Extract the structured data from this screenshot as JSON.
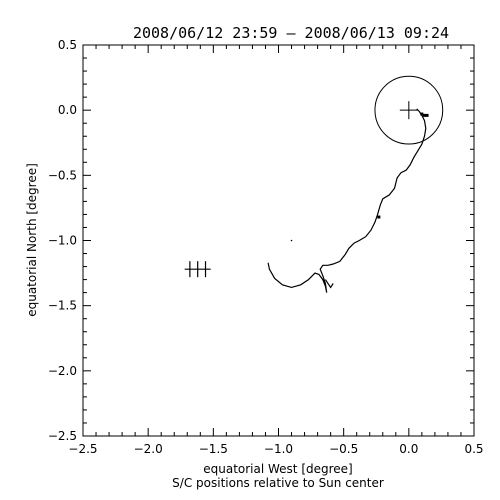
{
  "chart_data": {
    "type": "scatter",
    "title": "2008/06/12 23:59 – 2008/06/13 09:24",
    "xlabel": "equatorial West [degree]",
    "subtitle": "S/C positions relative to Sun center",
    "ylabel": "equatorial North [degree]",
    "xlim": [
      -2.5,
      0.5
    ],
    "ylim": [
      -2.5,
      0.5
    ],
    "x_ticks": [
      -2.5,
      -2.0,
      -1.5,
      -1.0,
      -0.5,
      0.0,
      0.5
    ],
    "y_ticks": [
      -2.5,
      -2.0,
      -1.5,
      -1.0,
      -0.5,
      0.0,
      0.5
    ],
    "x_tick_labels": [
      "−2.5",
      "−2.0",
      "−1.5",
      "−1.0",
      "−0.5",
      "0.0",
      "0.5"
    ],
    "y_tick_labels": [
      "−2.5",
      "−2.0",
      "−1.5",
      "−1.0",
      "−0.5",
      "0.0",
      "0.5"
    ],
    "grid": false,
    "sun_circle": {
      "center": [
        0.0,
        0.0
      ],
      "radius": 0.26
    },
    "sun_center_marker": [
      0.0,
      0.0
    ],
    "trajectory": [
      [
        -1.08,
        -1.17
      ],
      [
        -1.07,
        -1.22
      ],
      [
        -1.03,
        -1.29
      ],
      [
        -0.97,
        -1.34
      ],
      [
        -0.9,
        -1.36
      ],
      [
        -0.83,
        -1.34
      ],
      [
        -0.77,
        -1.3
      ],
      [
        -0.72,
        -1.25
      ],
      [
        -0.69,
        -1.26
      ],
      [
        -0.66,
        -1.3
      ],
      [
        -0.64,
        -1.35
      ],
      [
        -0.63,
        -1.4
      ],
      [
        -0.64,
        -1.33
      ],
      [
        -0.66,
        -1.27
      ],
      [
        -0.68,
        -1.22
      ],
      [
        -0.66,
        -1.19
      ],
      [
        -0.62,
        -1.19
      ],
      [
        -0.58,
        -1.18
      ],
      [
        -0.53,
        -1.16
      ],
      [
        -0.49,
        -1.11
      ],
      [
        -0.46,
        -1.06
      ],
      [
        -0.42,
        -1.02
      ],
      [
        -0.38,
        -1.0
      ],
      [
        -0.33,
        -0.97
      ],
      [
        -0.29,
        -0.92
      ],
      [
        -0.26,
        -0.86
      ],
      [
        -0.24,
        -0.8
      ],
      [
        -0.22,
        -0.73
      ],
      [
        -0.2,
        -0.68
      ],
      [
        -0.15,
        -0.65
      ],
      [
        -0.11,
        -0.6
      ],
      [
        -0.09,
        -0.52
      ],
      [
        -0.06,
        -0.48
      ],
      [
        -0.02,
        -0.46
      ],
      [
        0.01,
        -0.42
      ],
      [
        0.04,
        -0.36
      ],
      [
        0.07,
        -0.31
      ],
      [
        0.1,
        -0.26
      ],
      [
        0.12,
        -0.2
      ],
      [
        0.13,
        -0.14
      ],
      [
        0.12,
        -0.08
      ],
      [
        0.1,
        -0.04
      ],
      [
        0.08,
        -0.01
      ],
      [
        0.06,
        0.01
      ]
    ],
    "loop_points": [
      [
        -0.64,
        -1.3
      ],
      [
        -0.6,
        -1.36
      ],
      [
        -0.58,
        -1.33
      ]
    ],
    "marker_pos": [
      [
        -0.23,
        -0.82
      ]
    ],
    "dot_pos": [
      [
        -0.9,
        -1.0
      ]
    ],
    "small_markers": [
      [
        0.1,
        -0.03
      ],
      [
        0.12,
        -0.04
      ],
      [
        0.14,
        -0.04
      ]
    ],
    "cross_markers": [
      {
        "center": [
          -1.62,
          -1.22
        ],
        "half_width": 0.1,
        "tick_xs": [
          -1.68,
          -1.62,
          -1.56
        ]
      }
    ]
  }
}
